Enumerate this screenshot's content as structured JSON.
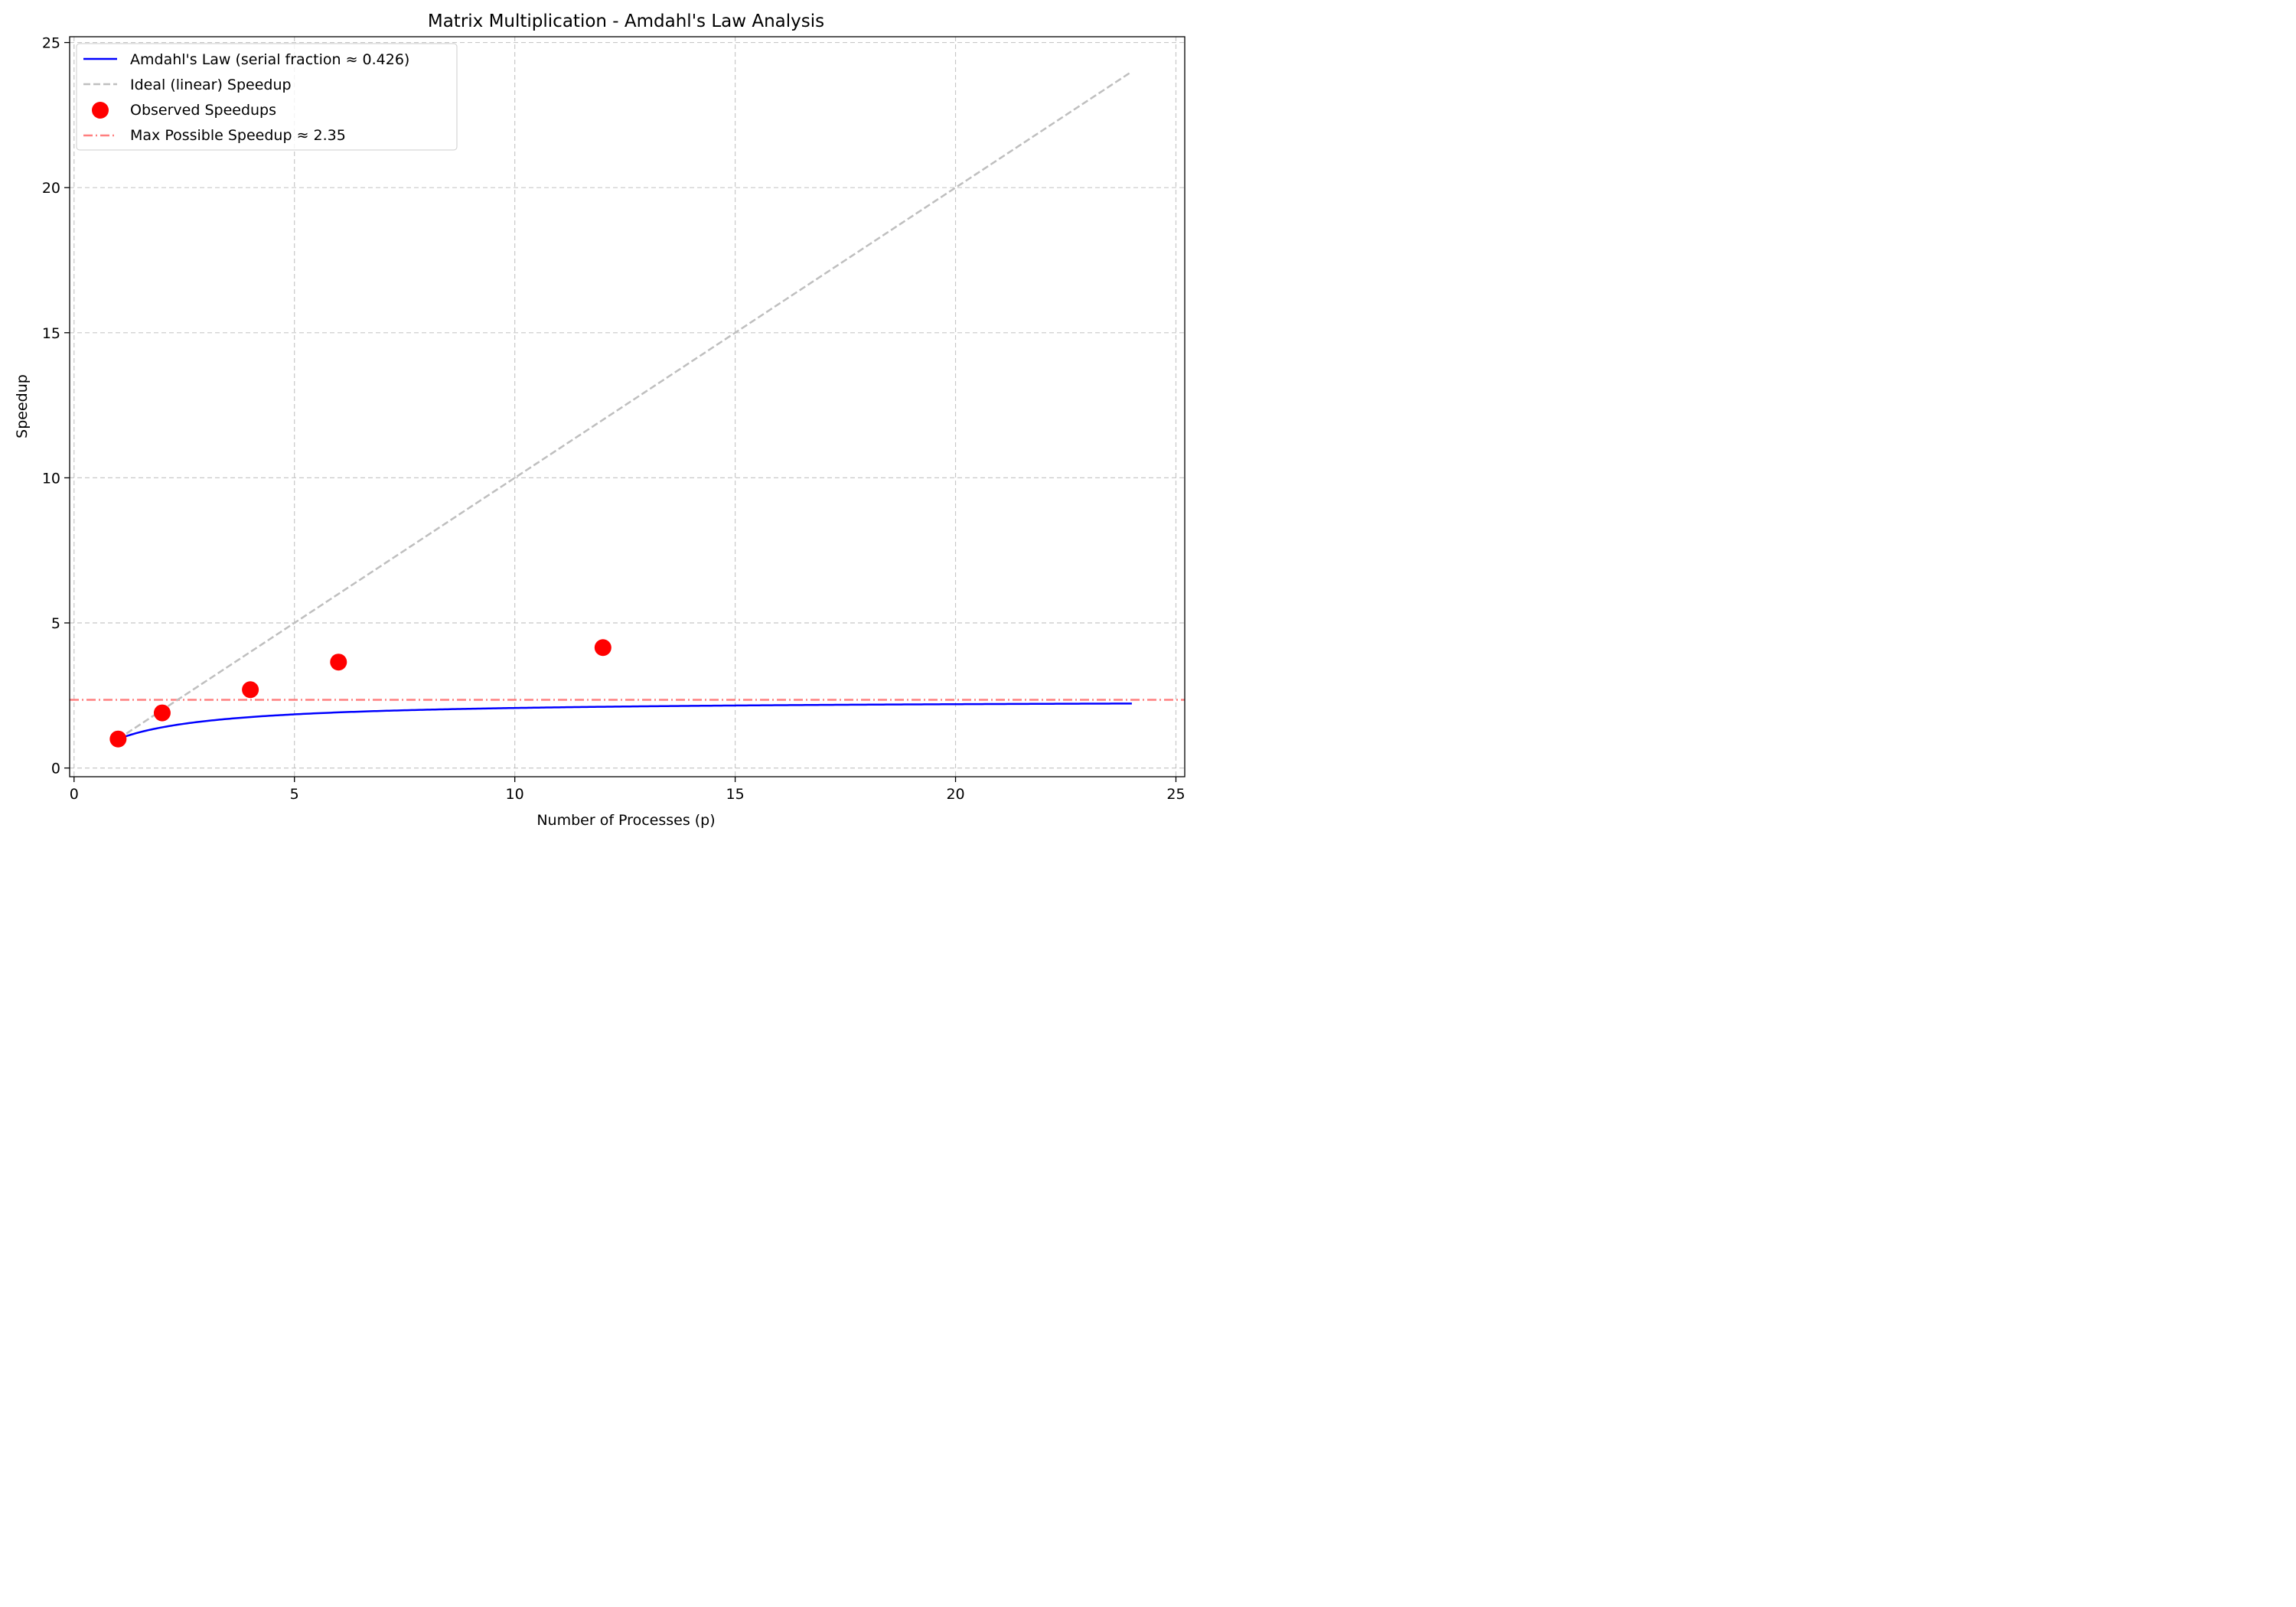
{
  "chart_data": {
    "type": "line",
    "title": "Matrix Multiplication - Amdahl's Law Analysis",
    "xlabel": "Number of Processes (p)",
    "ylabel": "Speedup",
    "xlim": [
      -0.1,
      25.2
    ],
    "ylim": [
      -0.3,
      25.2
    ],
    "xticks": [
      0,
      5,
      10,
      15,
      20,
      25
    ],
    "yticks": [
      0,
      5,
      10,
      15,
      20,
      25
    ],
    "grid": true,
    "legend_position": "top-left",
    "serial_fraction": 0.426,
    "series": [
      {
        "name": "Amdahl's Law (serial fraction ≈ 0.426)",
        "kind": "line",
        "style": "solid",
        "color": "#0000ff",
        "x_range": [
          1,
          24
        ]
      },
      {
        "name": "Ideal (linear) Speedup",
        "kind": "line",
        "style": "dashed",
        "color": "#bfbfbf",
        "x": [
          1,
          24
        ],
        "y": [
          1,
          24
        ]
      },
      {
        "name": "Observed Speedups",
        "kind": "scatter",
        "color": "#ff0000",
        "x": [
          1,
          2,
          4,
          6,
          12
        ],
        "y": [
          1.0,
          1.9,
          2.7,
          3.65,
          4.15
        ]
      },
      {
        "name": "Max Possible Speedup ≈ 2.35",
        "kind": "hline",
        "style": "dashdot",
        "color": "#ff7f7f",
        "y": 2.35
      }
    ]
  }
}
